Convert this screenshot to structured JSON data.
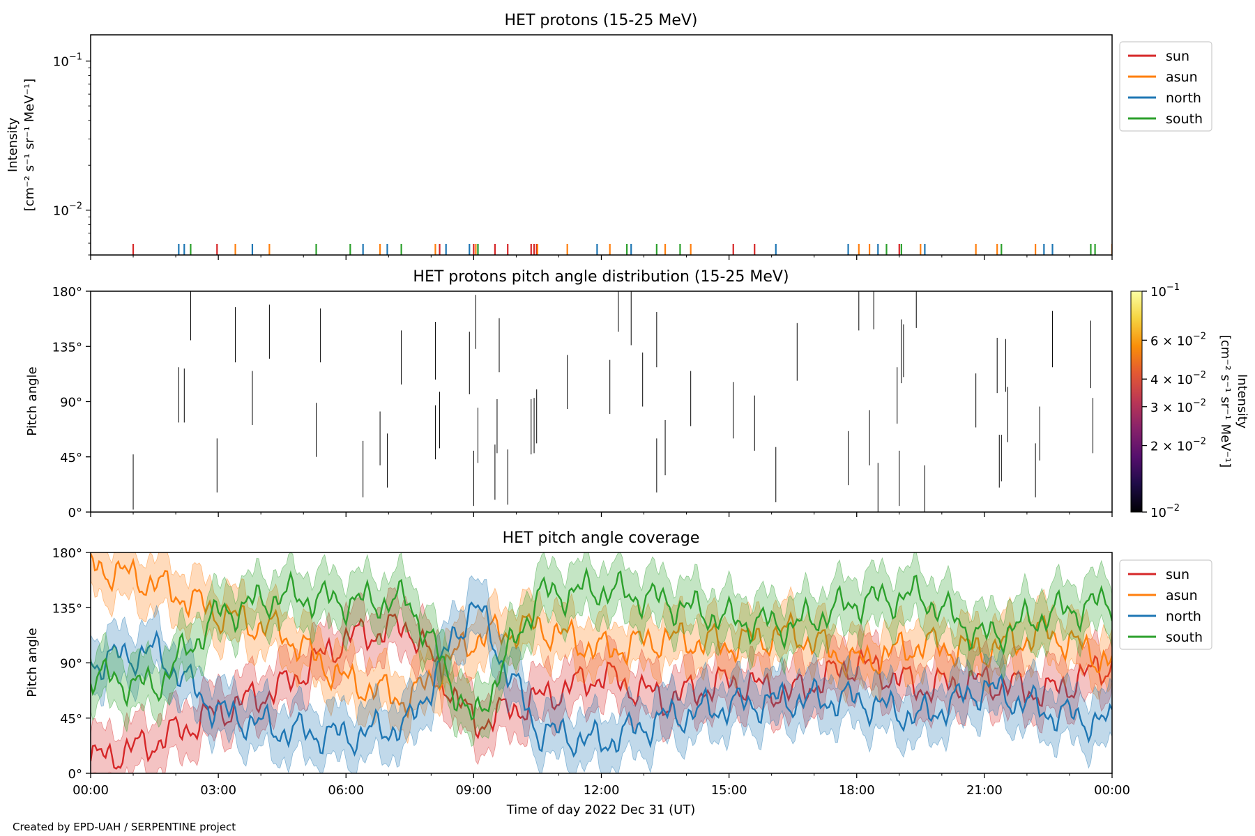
{
  "footer": {
    "credit": "Created by EPD-UAH / SERPENTINE project"
  },
  "xaxis": {
    "label": "Time of day 2022 Dec 31 (UT)",
    "range_hours": [
      0,
      24
    ],
    "tick_labels": [
      "00:00",
      "03:00",
      "06:00",
      "09:00",
      "12:00",
      "15:00",
      "18:00",
      "21:00",
      "00:00"
    ]
  },
  "colors": {
    "sun": "#d62728",
    "asun": "#ff7f0e",
    "north": "#1f77b4",
    "south": "#2ca02c"
  },
  "chart_data": [
    {
      "type": "line",
      "title": "HET protons (15-25 MeV)",
      "ylabel_line1": "Intensity",
      "ylabel_line2": "[cm⁻² s⁻¹ sr⁻¹ MeV⁻¹]",
      "yscale": "log",
      "ylim": [
        0.005,
        0.15
      ],
      "ytick_labels": [
        {
          "value": 0.1,
          "base": "10",
          "exp": "−1"
        },
        {
          "value": 0.01,
          "base": "10",
          "exp": "−2"
        }
      ],
      "legend": {
        "placement": "outside-right-top",
        "entries": [
          "sun",
          "asun",
          "north",
          "south"
        ]
      },
      "series": [
        {
          "name": "sun",
          "color": "#d62728",
          "x": [
            1.0,
            2.97,
            8.2,
            9.0,
            9.5,
            9.8,
            10.35,
            10.42,
            10.48,
            15.1,
            15.6,
            19.0
          ]
        },
        {
          "name": "asun",
          "color": "#ff7f0e",
          "x": [
            3.4,
            4.2,
            6.8,
            8.1,
            9.05,
            10.5,
            11.2,
            12.2,
            13.5,
            14.1,
            18.05,
            18.3,
            19.5,
            20.8,
            21.3,
            22.2,
            24.0
          ]
        },
        {
          "name": "north",
          "color": "#1f77b4",
          "x": [
            2.07,
            2.2,
            3.8,
            6.4,
            6.97,
            8.35,
            8.9,
            9.1,
            11.9,
            12.7,
            16.1,
            17.8,
            18.5,
            19.6,
            22.4,
            22.6
          ]
        },
        {
          "name": "south",
          "color": "#2ca02c",
          "x": [
            2.35,
            5.3,
            6.1,
            7.3,
            9.1,
            12.6,
            13.3,
            13.85,
            18.7,
            19.05,
            21.4,
            23.5,
            23.6
          ]
        }
      ]
    },
    {
      "type": "heatmap",
      "title": "HET protons pitch angle distribution (15-25 MeV)",
      "ylabel": "Pitch angle",
      "ylim": [
        0,
        180
      ],
      "ytick_labels": [
        "0°",
        "45°",
        "90°",
        "135°",
        "180°"
      ],
      "colorbar": {
        "label_line1": "Intensity",
        "label_line2": "[cm⁻² s⁻¹ sr⁻¹ MeV⁻¹]",
        "scale": "log",
        "range": [
          0.01,
          0.1
        ],
        "colormap": "inferno",
        "tick_labels": [
          {
            "value": 0.1,
            "text": "10",
            "exp": "−1"
          },
          {
            "value": 0.06,
            "text": "6 × 10",
            "exp": "−2"
          },
          {
            "value": 0.04,
            "text": "4 × 10",
            "exp": "−2"
          },
          {
            "value": 0.03,
            "text": "3 × 10",
            "exp": "−2"
          },
          {
            "value": 0.02,
            "text": "2 × 10",
            "exp": "−2"
          },
          {
            "value": 0.01,
            "text": "10",
            "exp": "−2"
          }
        ]
      },
      "segments": [
        [
          1.0,
          2,
          47
        ],
        [
          2.07,
          73,
          118
        ],
        [
          2.2,
          73,
          117
        ],
        [
          2.35,
          140,
          180
        ],
        [
          2.97,
          16,
          60
        ],
        [
          3.4,
          122,
          167
        ],
        [
          3.8,
          71,
          115
        ],
        [
          4.2,
          125,
          169
        ],
        [
          5.3,
          45,
          89
        ],
        [
          5.4,
          122,
          166
        ],
        [
          6.4,
          12,
          58
        ],
        [
          6.8,
          38,
          82
        ],
        [
          6.97,
          20,
          64
        ],
        [
          7.3,
          104,
          148
        ],
        [
          8.1,
          108,
          155
        ],
        [
          8.1,
          43,
          87
        ],
        [
          8.2,
          52,
          98
        ],
        [
          8.9,
          96,
          147
        ],
        [
          9.0,
          5,
          50
        ],
        [
          9.05,
          133,
          177
        ],
        [
          9.1,
          40,
          85
        ],
        [
          9.5,
          10,
          55
        ],
        [
          9.55,
          48,
          92
        ],
        [
          9.6,
          114,
          158
        ],
        [
          9.8,
          6,
          51
        ],
        [
          10.35,
          47,
          92
        ],
        [
          10.42,
          48,
          93
        ],
        [
          10.48,
          56,
          100
        ],
        [
          11.2,
          84,
          128
        ],
        [
          12.2,
          80,
          124
        ],
        [
          12.7,
          136,
          180
        ],
        [
          12.4,
          147,
          180
        ],
        [
          12.97,
          86,
          130
        ],
        [
          13.3,
          16,
          60
        ],
        [
          13.3,
          118,
          163
        ],
        [
          13.5,
          30,
          75
        ],
        [
          14.1,
          70,
          115
        ],
        [
          15.1,
          60,
          106
        ],
        [
          15.6,
          50,
          95
        ],
        [
          16.1,
          8,
          53
        ],
        [
          16.6,
          107,
          154
        ],
        [
          17.8,
          22,
          66
        ],
        [
          18.05,
          148,
          180
        ],
        [
          18.3,
          38,
          83
        ],
        [
          18.4,
          149,
          180
        ],
        [
          18.5,
          0,
          40
        ],
        [
          18.95,
          72,
          118
        ],
        [
          19.0,
          5,
          50
        ],
        [
          19.05,
          105,
          157
        ],
        [
          19.1,
          110,
          153
        ],
        [
          19.4,
          150,
          180
        ],
        [
          19.6,
          0,
          38
        ],
        [
          20.8,
          69,
          113
        ],
        [
          21.3,
          97,
          142
        ],
        [
          21.35,
          20,
          63
        ],
        [
          21.4,
          25,
          63
        ],
        [
          21.5,
          98,
          141
        ],
        [
          21.55,
          57,
          102
        ],
        [
          22.2,
          12,
          56
        ],
        [
          22.3,
          42,
          86
        ],
        [
          22.6,
          118,
          164
        ],
        [
          23.5,
          101,
          156
        ],
        [
          23.55,
          48,
          93
        ],
        [
          24.0,
          42,
          86
        ]
      ]
    },
    {
      "type": "area",
      "title": "HET pitch angle coverage",
      "ylabel": "Pitch angle",
      "ylim": [
        0,
        180
      ],
      "ytick_labels": [
        "0°",
        "45°",
        "90°",
        "135°",
        "180°"
      ],
      "legend": {
        "placement": "outside-right-top",
        "entries": [
          "sun",
          "asun",
          "north",
          "south"
        ]
      },
      "x": [
        0,
        1.5,
        3,
        4.5,
        6,
        7.5,
        9,
        10.5,
        12,
        13.5,
        15,
        16.5,
        18,
        19.5,
        21,
        22.5,
        24
      ],
      "series": [
        {
          "name": "sun",
          "color": "#d62728",
          "band": 22,
          "values": [
            10,
            25,
            50,
            70,
            110,
            120,
            40,
            60,
            80,
            60,
            75,
            65,
            90,
            70,
            75,
            65,
            90
          ]
        },
        {
          "name": "asun",
          "color": "#ff7f0e",
          "band": 22,
          "values": [
            170,
            155,
            130,
            115,
            75,
            60,
            110,
            120,
            100,
            110,
            105,
            115,
            90,
            105,
            100,
            115,
            90
          ]
        },
        {
          "name": "north",
          "color": "#1f77b4",
          "band": 22,
          "values": [
            90,
            100,
            50,
            35,
            30,
            40,
            140,
            35,
            25,
            45,
            55,
            60,
            60,
            45,
            70,
            50,
            40
          ]
        },
        {
          "name": "south",
          "color": "#2ca02c",
          "band": 22,
          "values": [
            80,
            70,
            130,
            145,
            140,
            140,
            40,
            145,
            150,
            140,
            125,
            120,
            140,
            145,
            110,
            130,
            140
          ]
        }
      ]
    }
  ]
}
